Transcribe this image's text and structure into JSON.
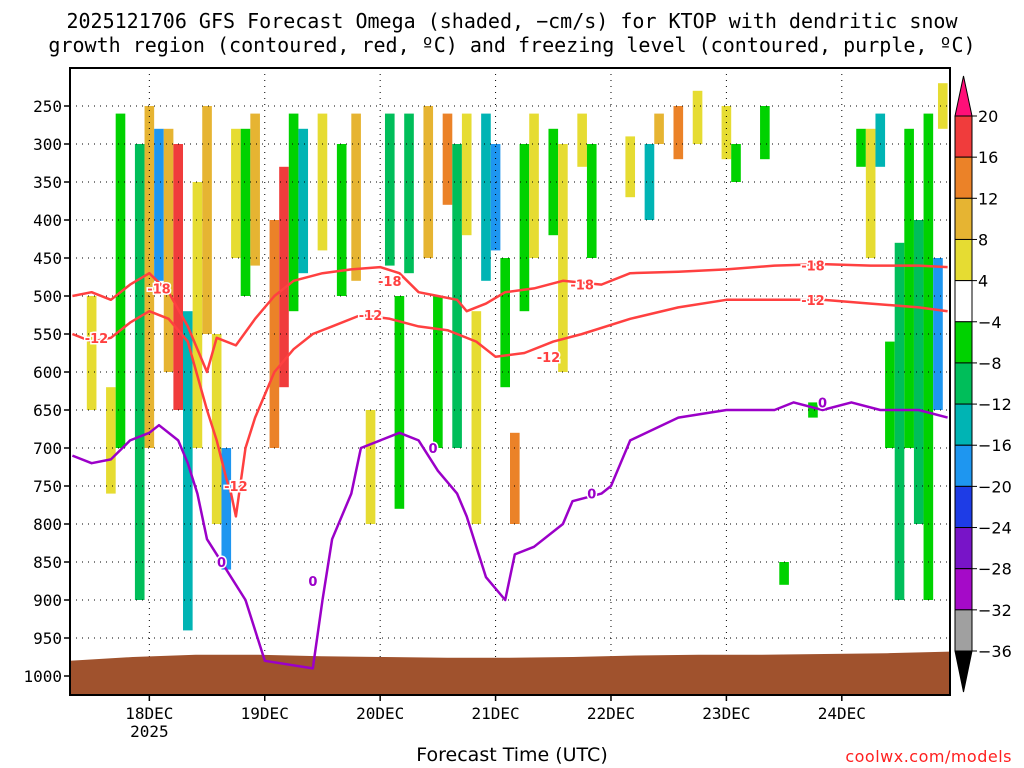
{
  "title": {
    "line1": "2025121706 GFS Forecast Omega (shaded, −cm/s) for KTOP with dendritic snow",
    "line2": "growth region (contoured, red, ºC) and freezing level (contoured, purple, ºC)"
  },
  "xlabel": "Forecast Time (UTC)",
  "credit": "coolwx.com/models",
  "chart_data": {
    "type": "heatmap",
    "title": "2025121706 GFS Forecast Omega (shaded, −cm/s) for KTOP with dendritic snow growth region (contoured, red, ºC) and freezing level (contoured, purple, ºC)",
    "xlabel": "Forecast Time (UTC)",
    "ylabel": "Pressure (hPa)",
    "x_unit": "hours since 18DEC 00 UTC",
    "xlim": [
      -16.5,
      166.5
    ],
    "ylim": [
      1025,
      200
    ],
    "y_ticks": [
      250,
      300,
      350,
      400,
      450,
      500,
      550,
      600,
      650,
      700,
      750,
      800,
      850,
      900,
      950,
      1000
    ],
    "x_ticks": [
      {
        "x": 0,
        "label": "18DEC",
        "sublabel": "2025"
      },
      {
        "x": 24,
        "label": "19DEC"
      },
      {
        "x": 48,
        "label": "20DEC"
      },
      {
        "x": 72,
        "label": "21DEC"
      },
      {
        "x": 96,
        "label": "22DEC"
      },
      {
        "x": 120,
        "label": "23DEC"
      },
      {
        "x": 144,
        "label": "24DEC"
      }
    ],
    "colorbar": {
      "labels": [
        "20",
        "16",
        "12",
        "8",
        "4",
        "−4",
        "−8",
        "−12",
        "−16",
        "−20",
        "−24",
        "−28",
        "−32",
        "−36"
      ],
      "colors": [
        "#ff0f78",
        "#f03c3c",
        "#eb8228",
        "#e6b432",
        "#e6dc32",
        "#ffffff",
        "#00d200",
        "#00be5a",
        "#00b4b4",
        "#1e96f0",
        "#1e3ce6",
        "#7814c8",
        "#a50ac8",
        "#a0a0a0",
        "#000000"
      ]
    },
    "surface": {
      "color": "#a0522d",
      "pressure": [
        980,
        975,
        972,
        972,
        974,
        975,
        976,
        976,
        975,
        973,
        972,
        972,
        971,
        970,
        968
      ]
    },
    "shading": [
      {
        "x": -12,
        "p": [
          500,
          650
        ],
        "v": 6
      },
      {
        "x": -8,
        "p": [
          620,
          760
        ],
        "v": 7
      },
      {
        "x": -6,
        "p": [
          260,
          700
        ],
        "v": -7
      },
      {
        "x": -2,
        "p": [
          300,
          900
        ],
        "v": -9
      },
      {
        "x": 0,
        "p": [
          250,
          700
        ],
        "v": 8
      },
      {
        "x": 2,
        "p": [
          280,
          480
        ],
        "v": -18
      },
      {
        "x": 4,
        "p": [
          280,
          600
        ],
        "v": 10
      },
      {
        "x": 6,
        "p": [
          300,
          650
        ],
        "v": 17
      },
      {
        "x": 8,
        "p": [
          520,
          940
        ],
        "v": -14
      },
      {
        "x": 10,
        "p": [
          350,
          700
        ],
        "v": 6
      },
      {
        "x": 12,
        "p": [
          250,
          550
        ],
        "v": 8
      },
      {
        "x": 14,
        "p": [
          550,
          800
        ],
        "v": 6
      },
      {
        "x": 16,
        "p": [
          700,
          860
        ],
        "v": -20
      },
      {
        "x": 18,
        "p": [
          280,
          450
        ],
        "v": 6
      },
      {
        "x": 20,
        "p": [
          280,
          500
        ],
        "v": -8
      },
      {
        "x": 22,
        "p": [
          260,
          460
        ],
        "v": 10
      },
      {
        "x": 26,
        "p": [
          400,
          700
        ],
        "v": 12
      },
      {
        "x": 28,
        "p": [
          330,
          620
        ],
        "v": 18
      },
      {
        "x": 30,
        "p": [
          260,
          520
        ],
        "v": -8
      },
      {
        "x": 32,
        "p": [
          280,
          470
        ],
        "v": -14
      },
      {
        "x": 36,
        "p": [
          260,
          440
        ],
        "v": 6
      },
      {
        "x": 40,
        "p": [
          300,
          500
        ],
        "v": -8
      },
      {
        "x": 43,
        "p": [
          260,
          480
        ],
        "v": 10
      },
      {
        "x": 46,
        "p": [
          650,
          800
        ],
        "v": 5
      },
      {
        "x": 50,
        "p": [
          260,
          460
        ],
        "v": -12
      },
      {
        "x": 52,
        "p": [
          500,
          780
        ],
        "v": -7
      },
      {
        "x": 54,
        "p": [
          260,
          470
        ],
        "v": -9
      },
      {
        "x": 58,
        "p": [
          250,
          450
        ],
        "v": 10
      },
      {
        "x": 60,
        "p": [
          500,
          700
        ],
        "v": -7
      },
      {
        "x": 62,
        "p": [
          260,
          380
        ],
        "v": 12
      },
      {
        "x": 64,
        "p": [
          300,
          700
        ],
        "v": -10
      },
      {
        "x": 66,
        "p": [
          260,
          420
        ],
        "v": 6
      },
      {
        "x": 68,
        "p": [
          520,
          800
        ],
        "v": 5
      },
      {
        "x": 70,
        "p": [
          260,
          480
        ],
        "v": -14
      },
      {
        "x": 72,
        "p": [
          300,
          440
        ],
        "v": -20
      },
      {
        "x": 74,
        "p": [
          450,
          620
        ],
        "v": -8
      },
      {
        "x": 76,
        "p": [
          680,
          800
        ],
        "v": 12
      },
      {
        "x": 78,
        "p": [
          300,
          520
        ],
        "v": -7
      },
      {
        "x": 80,
        "p": [
          260,
          450
        ],
        "v": 6
      },
      {
        "x": 84,
        "p": [
          280,
          420
        ],
        "v": -7
      },
      {
        "x": 86,
        "p": [
          300,
          600
        ],
        "v": 6
      },
      {
        "x": 90,
        "p": [
          260,
          330
        ],
        "v": 5
      },
      {
        "x": 92,
        "p": [
          300,
          450
        ],
        "v": -6
      },
      {
        "x": 100,
        "p": [
          290,
          370
        ],
        "v": 6
      },
      {
        "x": 104,
        "p": [
          300,
          400
        ],
        "v": -14
      },
      {
        "x": 106,
        "p": [
          260,
          300
        ],
        "v": 10
      },
      {
        "x": 110,
        "p": [
          250,
          320
        ],
        "v": 14
      },
      {
        "x": 114,
        "p": [
          230,
          300
        ],
        "v": 6
      },
      {
        "x": 120,
        "p": [
          250,
          320
        ],
        "v": 6
      },
      {
        "x": 122,
        "p": [
          300,
          350
        ],
        "v": -7
      },
      {
        "x": 128,
        "p": [
          250,
          320
        ],
        "v": -7
      },
      {
        "x": 132,
        "p": [
          850,
          880
        ],
        "v": -7
      },
      {
        "x": 138,
        "p": [
          640,
          660
        ],
        "v": -7
      },
      {
        "x": 148,
        "p": [
          280,
          330
        ],
        "v": -7
      },
      {
        "x": 150,
        "p": [
          280,
          450
        ],
        "v": 6
      },
      {
        "x": 152,
        "p": [
          260,
          330
        ],
        "v": -14
      },
      {
        "x": 154,
        "p": [
          560,
          700
        ],
        "v": -7
      },
      {
        "x": 156,
        "p": [
          430,
          900
        ],
        "v": -9
      },
      {
        "x": 158,
        "p": [
          280,
          700
        ],
        "v": -7
      },
      {
        "x": 160,
        "p": [
          400,
          800
        ],
        "v": -11
      },
      {
        "x": 162,
        "p": [
          260,
          900
        ],
        "v": -8
      },
      {
        "x": 164,
        "p": [
          450,
          650
        ],
        "v": -18
      },
      {
        "x": 165,
        "p": [
          220,
          280
        ],
        "v": 6
      }
    ],
    "contours": [
      {
        "name": "-18 ºC",
        "color": "#ff4040",
        "labels": [
          {
            "x": 2,
            "p": 490,
            "text": "-18"
          },
          {
            "x": 50,
            "p": 480,
            "text": "-18"
          },
          {
            "x": 90,
            "p": 485,
            "text": "-18"
          },
          {
            "x": 138,
            "p": 460,
            "text": "-18"
          }
        ],
        "points": [
          [
            -16,
            500
          ],
          [
            -12,
            495
          ],
          [
            -8,
            505
          ],
          [
            -4,
            485
          ],
          [
            0,
            470
          ],
          [
            4,
            495
          ],
          [
            8,
            540
          ],
          [
            12,
            600
          ],
          [
            14,
            555
          ],
          [
            18,
            565
          ],
          [
            22,
            530
          ],
          [
            26,
            500
          ],
          [
            30,
            480
          ],
          [
            36,
            470
          ],
          [
            42,
            465
          ],
          [
            48,
            462
          ],
          [
            52,
            470
          ],
          [
            56,
            495
          ],
          [
            60,
            500
          ],
          [
            64,
            505
          ],
          [
            66,
            520
          ],
          [
            70,
            510
          ],
          [
            74,
            495
          ],
          [
            80,
            490
          ],
          [
            86,
            480
          ],
          [
            94,
            485
          ],
          [
            100,
            470
          ],
          [
            110,
            468
          ],
          [
            120,
            465
          ],
          [
            130,
            460
          ],
          [
            140,
            458
          ],
          [
            150,
            460
          ],
          [
            160,
            460
          ],
          [
            166,
            462
          ]
        ]
      },
      {
        "name": "-12 ºC",
        "color": "#ff4040",
        "labels": [
          {
            "x": -11,
            "p": 555,
            "text": "-12"
          },
          {
            "x": 18,
            "p": 750,
            "text": "-12"
          },
          {
            "x": 46,
            "p": 525,
            "text": "-12"
          },
          {
            "x": 83,
            "p": 580,
            "text": "-12"
          },
          {
            "x": 138,
            "p": 505,
            "text": "-12"
          }
        ],
        "points": [
          [
            -16,
            550
          ],
          [
            -12,
            560
          ],
          [
            -8,
            555
          ],
          [
            -4,
            535
          ],
          [
            0,
            520
          ],
          [
            4,
            530
          ],
          [
            8,
            560
          ],
          [
            12,
            650
          ],
          [
            14,
            690
          ],
          [
            16,
            740
          ],
          [
            17,
            760
          ],
          [
            18,
            790
          ],
          [
            20,
            700
          ],
          [
            22,
            660
          ],
          [
            26,
            600
          ],
          [
            30,
            570
          ],
          [
            34,
            550
          ],
          [
            38,
            540
          ],
          [
            44,
            525
          ],
          [
            50,
            530
          ],
          [
            56,
            540
          ],
          [
            62,
            545
          ],
          [
            68,
            560
          ],
          [
            72,
            580
          ],
          [
            78,
            575
          ],
          [
            84,
            560
          ],
          [
            90,
            550
          ],
          [
            100,
            530
          ],
          [
            110,
            515
          ],
          [
            120,
            505
          ],
          [
            130,
            505
          ],
          [
            140,
            505
          ],
          [
            150,
            510
          ],
          [
            160,
            515
          ],
          [
            166,
            520
          ]
        ]
      },
      {
        "name": "0 ºC (freezing level)",
        "color": "#9b00c8",
        "labels": [
          {
            "x": 15,
            "p": 850,
            "text": "0"
          },
          {
            "x": 34,
            "p": 875,
            "text": "0"
          },
          {
            "x": 59,
            "p": 700,
            "text": "0"
          },
          {
            "x": 92,
            "p": 760,
            "text": "0"
          },
          {
            "x": 140,
            "p": 640,
            "text": "0"
          }
        ],
        "points": [
          [
            -16,
            710
          ],
          [
            -12,
            720
          ],
          [
            -8,
            715
          ],
          [
            -4,
            690
          ],
          [
            0,
            680
          ],
          [
            2,
            670
          ],
          [
            6,
            690
          ],
          [
            8,
            720
          ],
          [
            10,
            760
          ],
          [
            12,
            820
          ],
          [
            16,
            860
          ],
          [
            20,
            900
          ],
          [
            24,
            980
          ],
          [
            34,
            990
          ],
          [
            36,
            900
          ],
          [
            38,
            820
          ],
          [
            42,
            760
          ],
          [
            44,
            700
          ],
          [
            48,
            690
          ],
          [
            52,
            680
          ],
          [
            56,
            690
          ],
          [
            60,
            730
          ],
          [
            64,
            760
          ],
          [
            66,
            790
          ],
          [
            68,
            830
          ],
          [
            70,
            870
          ],
          [
            74,
            900
          ],
          [
            76,
            840
          ],
          [
            80,
            830
          ],
          [
            86,
            800
          ],
          [
            88,
            770
          ],
          [
            94,
            760
          ],
          [
            96,
            750
          ],
          [
            98,
            720
          ],
          [
            100,
            690
          ],
          [
            110,
            660
          ],
          [
            120,
            650
          ],
          [
            130,
            650
          ],
          [
            134,
            640
          ],
          [
            140,
            650
          ],
          [
            146,
            640
          ],
          [
            152,
            650
          ],
          [
            160,
            650
          ],
          [
            166,
            660
          ]
        ]
      }
    ]
  }
}
